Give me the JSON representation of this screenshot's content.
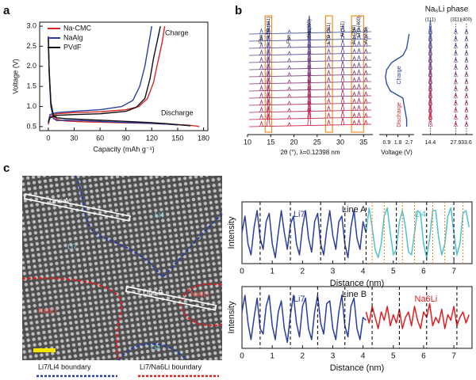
{
  "chart_data": [
    {
      "type": "line",
      "panel": "a",
      "xlabel": "Capacity (mAh g⁻¹)",
      "ylabel": "Voltage (V)",
      "xlim": [
        -10,
        185
      ],
      "xticks": [
        0,
        30,
        60,
        90,
        120,
        150,
        180
      ],
      "ylim": [
        0.4,
        3.1
      ],
      "yticks": [
        0.5,
        {
          "value": 1,
          "label": "1.0"
        },
        1.5,
        {
          "value": 2,
          "label": "2.0"
        },
        2.5,
        {
          "value": 3,
          "label": "3.0"
        }
      ],
      "legend": "upper left",
      "annotations": [
        "Charge",
        "Discharge"
      ],
      "series": [
        {
          "name": "Na-CMC",
          "color": "#d62728",
          "x": [
            0,
            1,
            3,
            6,
            10,
            20,
            40,
            60,
            80,
            100,
            120,
            140,
            160,
            170,
            175,
            null,
            0,
            2,
            10,
            30,
            60,
            90,
            105,
            115,
            122,
            128,
            132,
            135
          ],
          "values": [
            2.75,
            1.9,
            1.1,
            0.75,
            0.68,
            0.64,
            0.62,
            0.61,
            0.6,
            0.59,
            0.58,
            0.56,
            0.54,
            0.52,
            0.5,
            null,
            0.55,
            0.75,
            0.82,
            0.85,
            0.87,
            0.92,
            1.0,
            1.2,
            1.6,
            2.2,
            2.6,
            3.0
          ]
        },
        {
          "name": "NaAlg",
          "color": "#2b3fa0",
          "x": [
            0,
            1,
            3,
            6,
            10,
            20,
            40,
            60,
            80,
            100,
            120,
            140,
            150,
            null,
            0,
            2,
            10,
            30,
            60,
            85,
            98,
            106,
            112,
            116,
            120
          ],
          "values": [
            2.75,
            1.8,
            1.0,
            0.7,
            0.65,
            0.66,
            0.65,
            0.63,
            0.61,
            0.6,
            0.58,
            0.56,
            0.54,
            null,
            0.6,
            0.8,
            0.85,
            0.88,
            0.92,
            1.0,
            1.15,
            1.5,
            2.0,
            2.5,
            3.0
          ]
        },
        {
          "name": "PVdF",
          "color": "#111111",
          "x": [
            0,
            1,
            3,
            6,
            10,
            20,
            40,
            60,
            80,
            100,
            120,
            140,
            160,
            165,
            null,
            0,
            2,
            10,
            30,
            60,
            90,
            102,
            112,
            118,
            122,
            126,
            130
          ],
          "values": [
            2.7,
            1.9,
            1.1,
            0.78,
            0.72,
            0.7,
            0.68,
            0.66,
            0.64,
            0.62,
            0.6,
            0.57,
            0.53,
            0.52,
            null,
            0.6,
            0.72,
            0.78,
            0.8,
            0.82,
            0.88,
            0.98,
            1.2,
            1.7,
            2.2,
            2.6,
            3.0
          ]
        }
      ]
    },
    {
      "type": "xrd",
      "panel": "b",
      "xlabel": "2θ (°), λ=0.12398 nm",
      "xlim": [
        10,
        37
      ],
      "xticks": [
        10,
        15,
        20,
        25,
        30,
        35
      ],
      "peaks": [
        {
          "x": 13,
          "label": "Film"
        },
        {
          "x": 14.5,
          "label": "LTO (111)"
        },
        {
          "x": 19,
          "label": "Film"
        },
        {
          "x": 23.3,
          "label": "Na (110)"
        },
        {
          "x": 27.5,
          "label": "LTO (311)"
        },
        {
          "x": 30.5,
          "label": "Al (111)"
        },
        {
          "x": 33,
          "label": "Na (200)"
        },
        {
          "x": 34,
          "label": "LTO (400)"
        },
        {
          "x": 35.5,
          "label": "Al (200)"
        }
      ],
      "voltages": [
        2.5,
        2.5,
        2.4,
        2.3,
        2.2,
        1.2,
        0.9,
        0.8,
        0.9,
        1.3,
        2.2,
        2.5,
        2.6,
        2.7
      ],
      "voltage_label": "Voltage (V)",
      "vlim": [
        0.3,
        3.1
      ],
      "vticks": [
        0.9,
        1.8,
        2.7
      ],
      "inset_labels": [
        "Charge",
        "Discharge"
      ],
      "phase": {
        "title": "Na₆Li phase",
        "peaks": [
          14.4,
          27.9,
          33.6
        ],
        "labels": [
          "(111)",
          "(311)",
          "(400)"
        ]
      }
    },
    {
      "type": "profile",
      "title": "Line A",
      "xlabel": "Distance (nm)",
      "ylabel": "Intensity",
      "xlim": [
        0,
        7.6
      ],
      "xticks": [
        0,
        1,
        2,
        3,
        4,
        5,
        6,
        7
      ],
      "ylim": [
        0,
        1
      ],
      "dashed": [
        0.6,
        1.6,
        2.6,
        3.4,
        4.1,
        5.1,
        6.1,
        7.0
      ],
      "dotted": [
        4.3,
        4.7,
        5.3,
        5.7,
        6.3,
        6.7,
        7.3
      ],
      "series": [
        {
          "name": "Li7",
          "color": "#2b3fa0",
          "x": [
            0,
            0.1,
            0.2,
            0.3,
            0.4,
            0.5,
            0.6,
            0.7,
            0.8,
            0.9,
            1,
            1.1,
            1.2,
            1.3,
            1.4,
            1.5,
            1.6,
            1.7,
            1.8,
            1.9,
            2,
            2.1,
            2.2,
            2.3,
            2.4,
            2.5,
            2.6,
            2.7,
            2.8,
            2.9,
            3,
            3.1,
            3.2,
            3.3,
            3.4,
            3.5,
            3.6,
            3.7,
            3.8,
            3.9,
            4,
            4.1
          ],
          "values": [
            0.5,
            0.8,
            0.3,
            0.1,
            0.6,
            0.9,
            0.4,
            0.2,
            0.7,
            0.85,
            0.3,
            0.05,
            0.5,
            0.9,
            0.5,
            0.2,
            0.65,
            0.8,
            0.3,
            0.1,
            0.6,
            0.9,
            0.4,
            0.15,
            0.7,
            0.85,
            0.3,
            0.1,
            0.55,
            0.9,
            0.45,
            0.2,
            0.7,
            0.8,
            0.3,
            0.05,
            0.6,
            0.9,
            0.4,
            0.2,
            0.7,
            0.5
          ]
        },
        {
          "name": "Li4",
          "color": "#4fc3cf",
          "x": [
            4.1,
            4.2,
            4.3,
            4.4,
            4.5,
            4.6,
            4.7,
            4.8,
            4.9,
            5,
            5.1,
            5.2,
            5.3,
            5.4,
            5.5,
            5.6,
            5.7,
            5.8,
            5.9,
            6,
            6.1,
            6.2,
            6.3,
            6.4,
            6.5,
            6.6,
            6.7,
            6.8,
            6.9,
            7,
            7.1,
            7.2,
            7.3,
            7.4,
            7.5
          ],
          "values": [
            0.5,
            0.95,
            0.6,
            0.2,
            0.05,
            0.3,
            0.8,
            0.95,
            0.5,
            0.1,
            0.2,
            0.7,
            0.9,
            0.6,
            0.15,
            0.1,
            0.5,
            0.9,
            0.85,
            0.3,
            0.05,
            0.4,
            0.9,
            0.9,
            0.4,
            0.1,
            0.3,
            0.8,
            0.95,
            0.5,
            0.1,
            0.3,
            0.85,
            0.9,
            0.6
          ]
        }
      ]
    },
    {
      "type": "profile",
      "title": "Line B",
      "xlabel": "Distance (nm)",
      "ylabel": "Intensity",
      "xlim": [
        0,
        7.6
      ],
      "xticks": [
        0,
        1,
        2,
        3,
        4,
        5,
        6,
        7
      ],
      "ylim": [
        0,
        1
      ],
      "dashed": [
        0.6,
        1.6,
        2.5,
        3.4,
        4.3,
        5.2,
        6.1,
        7.1
      ],
      "dotted": [],
      "series": [
        {
          "name": "Li7",
          "color": "#2b3fa0",
          "x": [
            0,
            0.1,
            0.2,
            0.3,
            0.4,
            0.5,
            0.6,
            0.7,
            0.8,
            0.9,
            1,
            1.1,
            1.2,
            1.3,
            1.4,
            1.5,
            1.6,
            1.7,
            1.8,
            1.9,
            2,
            2.1,
            2.2,
            2.3,
            2.4,
            2.5,
            2.6,
            2.7,
            2.8,
            2.9,
            3,
            3.1,
            3.2,
            3.3,
            3.4,
            3.5,
            3.6,
            3.7,
            3.8,
            3.9,
            4,
            4.1
          ],
          "values": [
            0.6,
            0.9,
            0.4,
            0.1,
            0.5,
            0.85,
            0.3,
            0.2,
            0.7,
            0.9,
            0.35,
            0.1,
            0.6,
            0.8,
            0.3,
            0.05,
            0.55,
            0.9,
            0.4,
            0.15,
            0.7,
            0.85,
            0.3,
            0.1,
            0.6,
            0.9,
            0.4,
            0.2,
            0.75,
            0.8,
            0.3,
            0.1,
            0.6,
            0.9,
            0.35,
            0.15,
            0.7,
            0.85,
            0.3,
            0.1,
            0.5,
            0.45
          ]
        },
        {
          "name": "Na6Li",
          "color": "#e02020",
          "x": [
            4.1,
            4.2,
            4.3,
            4.4,
            4.5,
            4.6,
            4.7,
            4.8,
            4.9,
            5,
            5.1,
            5.2,
            5.3,
            5.4,
            5.5,
            5.6,
            5.7,
            5.8,
            5.9,
            6,
            6.1,
            6.2,
            6.3,
            6.4,
            6.5,
            6.6,
            6.7,
            6.8,
            6.9,
            7,
            7.1,
            7.2,
            7.3,
            7.4,
            7.5
          ],
          "values": [
            0.6,
            0.4,
            0.7,
            0.5,
            0.3,
            0.6,
            0.45,
            0.7,
            0.35,
            0.55,
            0.4,
            0.65,
            0.3,
            0.5,
            0.6,
            0.35,
            0.7,
            0.45,
            0.3,
            0.6,
            0.5,
            0.75,
            0.35,
            0.5,
            0.4,
            0.65,
            0.3,
            0.55,
            0.45,
            0.7,
            0.35,
            0.5,
            0.6,
            0.4,
            0.55
          ]
        }
      ]
    }
  ],
  "image_panel": {
    "panel": "c",
    "labels": [
      "Line A",
      "Line B",
      "Li4",
      "Li7",
      "Na6Li",
      "Na6Li",
      "Li4"
    ],
    "legend": [
      {
        "name": "Li7/Li4 boundary",
        "color": "#2b3fa0"
      },
      {
        "name": "Li7/Na6Li boundary",
        "color": "#e02020"
      }
    ]
  }
}
